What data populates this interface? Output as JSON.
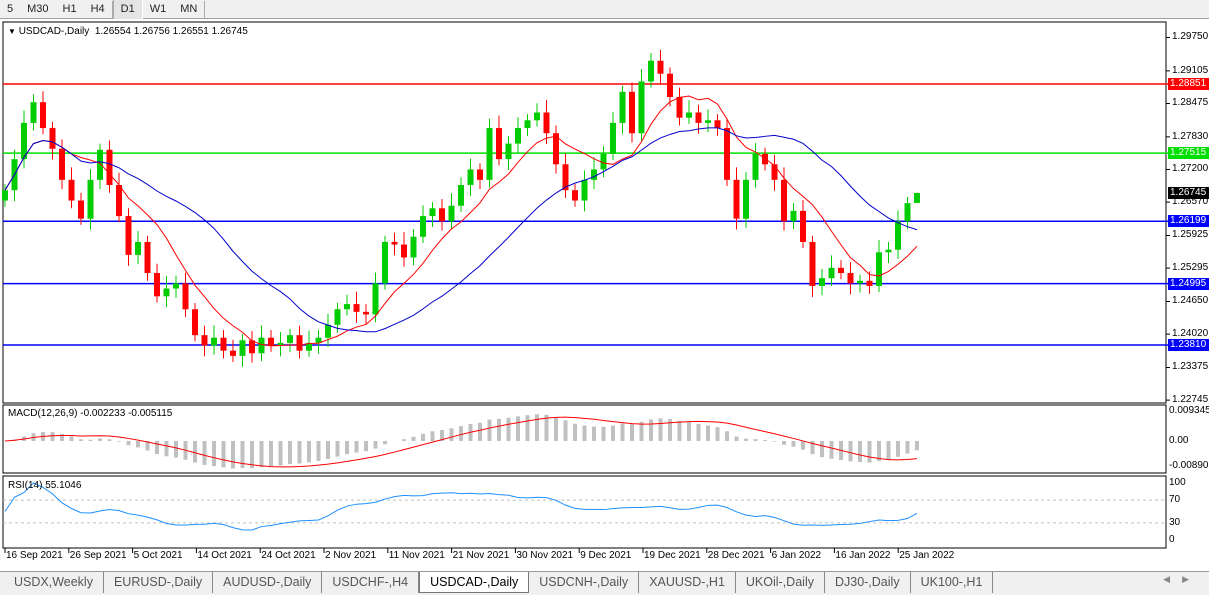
{
  "toolbar": {
    "timeframes": [
      {
        "label": "5"
      },
      {
        "label": "M30"
      },
      {
        "label": "H1"
      },
      {
        "label": "H4"
      },
      {
        "label": "D1",
        "active": true
      },
      {
        "label": "W1"
      },
      {
        "label": "MN"
      }
    ]
  },
  "chart_title": "USDCAD-,Daily",
  "ohlc_readout": "1.26554 1.26756 1.26551 1.26745",
  "colors": {
    "bull": "#00cc00",
    "bear": "#ff0000",
    "ma_fast": "#ff0000",
    "ma_slow": "#0000cc",
    "rsi": "#1e90ff",
    "macd_hist": "#c0c0c0",
    "macd_signal": "#ff0000"
  },
  "chart_data": {
    "type": "candlestick",
    "symbol": "USDCAD-",
    "period": "Daily",
    "ylim": [
      1.22745,
      1.2975
    ],
    "y_ticks": [
      "1.29750",
      "1.29105",
      "1.28475",
      "1.27830",
      "1.27200",
      "1.26570",
      "1.25925",
      "1.25295",
      "1.24650",
      "1.24020",
      "1.23375",
      "1.22745"
    ],
    "x_ticks": [
      "16 Sep 2021",
      "26 Sep 2021",
      "5 Oct 2021",
      "14 Oct 2021",
      "24 Oct 2021",
      "2 Nov 2021",
      "11 Nov 2021",
      "21 Nov 2021",
      "30 Nov 2021",
      "9 Dec 2021",
      "19 Dec 2021",
      "28 Dec 2021",
      "6 Jan 2022",
      "16 Jan 2022",
      "25 Jan 2022"
    ],
    "close": [
      1.268,
      1.274,
      1.281,
      1.285,
      1.28,
      1.276,
      1.27,
      1.266,
      1.2625,
      1.27,
      1.2758,
      1.269,
      1.263,
      1.2555,
      1.258,
      1.252,
      1.2475,
      1.249,
      1.25,
      1.245,
      1.24,
      1.238,
      1.2395,
      1.237,
      1.236,
      1.239,
      1.2365,
      1.2395,
      1.238,
      1.2385,
      1.24,
      1.237,
      1.2385,
      1.2395,
      1.242,
      1.245,
      1.246,
      1.2445,
      1.244,
      1.25,
      1.258,
      1.2575,
      1.255,
      1.259,
      1.263,
      1.2645,
      1.262,
      1.265,
      1.269,
      1.272,
      1.27,
      1.28,
      1.274,
      1.277,
      1.28,
      1.2815,
      1.283,
      1.279,
      1.273,
      1.268,
      1.266,
      1.27,
      1.272,
      1.275,
      1.281,
      1.287,
      1.279,
      1.289,
      1.293,
      1.2905,
      1.286,
      1.282,
      1.283,
      1.281,
      1.2815,
      1.28,
      1.27,
      1.2625,
      1.27,
      1.275,
      1.273,
      1.27,
      1.262,
      1.264,
      1.258,
      1.2495,
      1.251,
      1.253,
      1.252,
      1.25,
      1.2505,
      1.2495,
      1.256,
      1.2565,
      1.262,
      1.2655,
      1.26745
    ],
    "current_price": "1.26745",
    "hlines": [
      {
        "price": "1.28851",
        "color": "#ff0000"
      },
      {
        "price": "1.27515",
        "color": "#00e000"
      },
      {
        "price": "1.26199",
        "color": "#0000ff"
      },
      {
        "price": "1.24995",
        "color": "#0000ff"
      },
      {
        "price": "1.23810",
        "color": "#0000ff"
      }
    ],
    "macd": {
      "label": "MACD(12,26,9) -0.002233 -0.005115",
      "y_ticks": [
        "0.009345",
        "0.00",
        "-0.008902"
      ]
    },
    "rsi": {
      "label": "RSI(14) 55.1046",
      "y_ticks": [
        "100",
        "70",
        "30",
        "0"
      ],
      "levels": [
        70,
        30
      ]
    }
  },
  "tabs": [
    {
      "label": "USDX,Weekly"
    },
    {
      "label": "EURUSD-,Daily"
    },
    {
      "label": "AUDUSD-,Daily"
    },
    {
      "label": "USDCHF-,H4"
    },
    {
      "label": "USDCAD-,Daily",
      "active": true
    },
    {
      "label": "USDCNH-,Daily"
    },
    {
      "label": "XAUUSD-,H1"
    },
    {
      "label": "UKOil-,Daily"
    },
    {
      "label": "DJ30-,Daily"
    },
    {
      "label": "UK100-,H1"
    }
  ]
}
